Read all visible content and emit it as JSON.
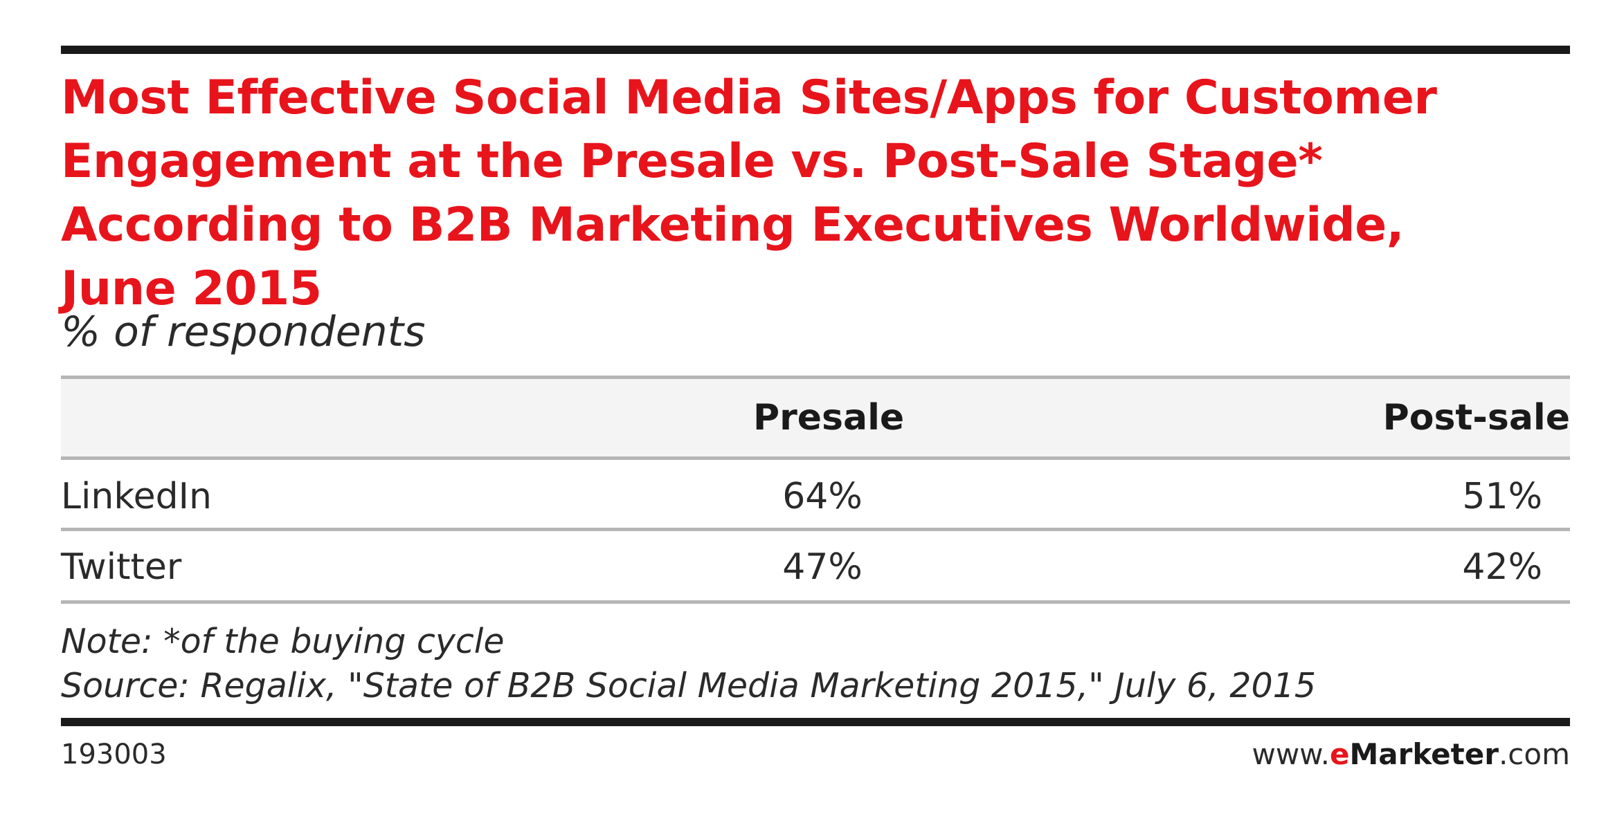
{
  "chart_data": {
    "type": "table",
    "title": "Most Effective Social Media Sites/Apps for Customer\nEngagement at the Presale vs. Post-Sale Stage*\nAccording to B2B Marketing Executives Worldwide,\nJune 2015",
    "subtitle": "% of respondents",
    "columns": [
      "Presale",
      "Post-sale"
    ],
    "rows": [
      {
        "label": "LinkedIn",
        "values": [
          "64%",
          "51%"
        ]
      },
      {
        "label": "Twitter",
        "values": [
          "47%",
          "42%"
        ]
      }
    ],
    "series": [
      {
        "name": "Presale",
        "values": [
          64,
          47
        ]
      },
      {
        "name": "Post-sale",
        "values": [
          51,
          42
        ]
      }
    ],
    "categories": [
      "LinkedIn",
      "Twitter"
    ],
    "note": "Note: *of the buying cycle",
    "source": "Source: Regalix, \"State of B2B Social Media Marketing 2015,\" July 6, 2015",
    "chart_id": "193003",
    "brand": {
      "prefix": "www.",
      "e": "e",
      "main": "Marketer",
      "suffix": ".com"
    },
    "colors": {
      "title": "#e8141c",
      "rule": "#1a1a1a"
    }
  }
}
